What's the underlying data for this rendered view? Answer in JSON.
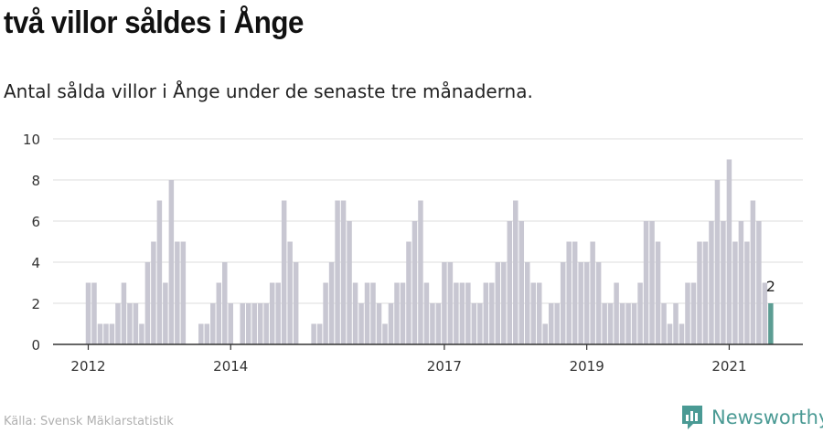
{
  "header": {
    "title": "två villor såldes i Ånge",
    "subtitle": "Antal sålda villor i Ånge under de senaste tre månaderna."
  },
  "footer": {
    "source": "Källa: Svensk Mäklarstatistik",
    "brand": "Newsworthy"
  },
  "colors": {
    "bar": "#c8c7d2",
    "highlight": "#5c9d93",
    "grid": "#dddddd",
    "axis": "#333333",
    "brand": "#4a9a94"
  },
  "chart_data": {
    "type": "bar",
    "x_start": "2012-01",
    "x_tick_labels": [
      "2012",
      "2014",
      "2017",
      "2019",
      "2021"
    ],
    "x_tick_months": [
      "2012-01",
      "2014-01",
      "2017-01",
      "2019-01",
      "2021-01"
    ],
    "y_ticks": [
      "0",
      "2",
      "4",
      "6",
      "8",
      "10"
    ],
    "ylim": [
      0,
      10
    ],
    "grid": true,
    "values": [
      3,
      3,
      1,
      1,
      1,
      2,
      3,
      2,
      2,
      1,
      4,
      5,
      7,
      3,
      8,
      5,
      5,
      0,
      0,
      1,
      1,
      2,
      3,
      4,
      2,
      0,
      2,
      2,
      2,
      2,
      2,
      3,
      3,
      7,
      5,
      4,
      0,
      0,
      1,
      1,
      3,
      4,
      7,
      7,
      6,
      3,
      2,
      3,
      3,
      2,
      1,
      2,
      3,
      3,
      5,
      6,
      7,
      3,
      2,
      2,
      4,
      4,
      3,
      3,
      3,
      2,
      2,
      3,
      3,
      4,
      4,
      6,
      7,
      6,
      4,
      3,
      3,
      1,
      2,
      2,
      4,
      5,
      5,
      4,
      4,
      5,
      4,
      2,
      2,
      3,
      2,
      2,
      2,
      3,
      6,
      6,
      5,
      2,
      1,
      2,
      1,
      3,
      3,
      5,
      5,
      6,
      8,
      6,
      9,
      5,
      6,
      5,
      7,
      6,
      3,
      2
    ],
    "highlight_index": 115,
    "highlight_label": "2"
  }
}
